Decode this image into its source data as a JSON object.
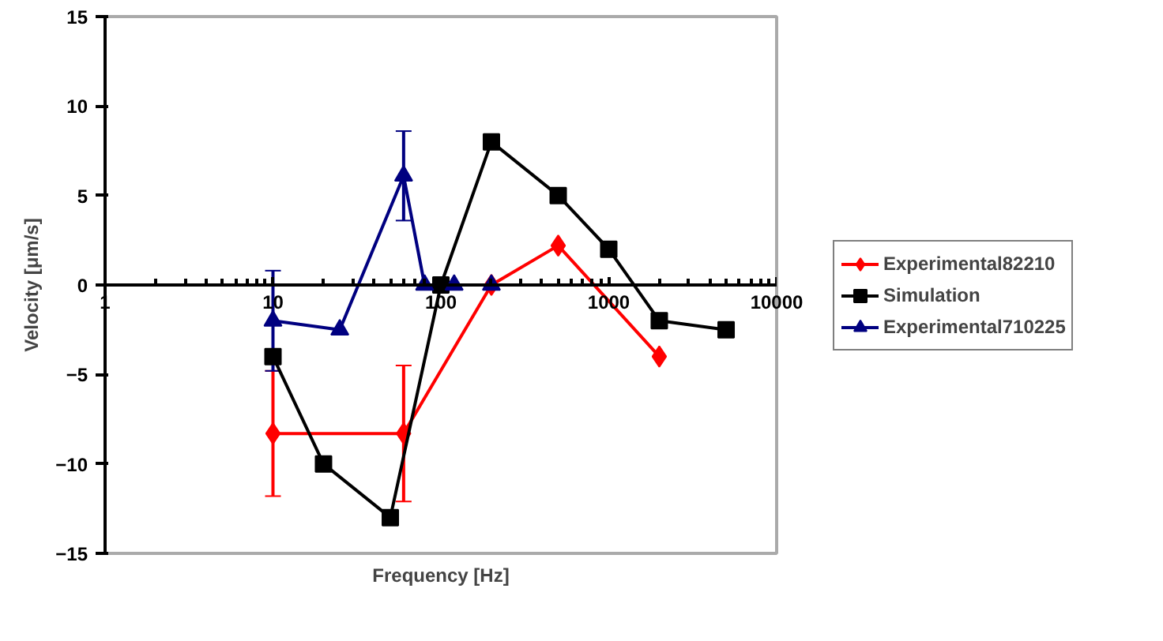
{
  "chart_data": {
    "type": "line",
    "xlabel": "Frequency [Hz]",
    "ylabel": "Velocity [μm/s]",
    "log": "x",
    "xlim": [
      1,
      10000
    ],
    "xticks": [
      1,
      10,
      100,
      1000,
      10000
    ],
    "ylim": [
      -15,
      15
    ],
    "yticks": [
      -15,
      -10,
      -5,
      0,
      5,
      10,
      15
    ],
    "grid": false,
    "legend": "right",
    "series": [
      {
        "name": "Experimental82210",
        "color": "#ff0000",
        "marker": "diamond",
        "x": [
          10,
          60,
          200,
          500,
          2000
        ],
        "values": [
          -8.3,
          -8.3,
          0,
          2.2,
          -4
        ],
        "errors": [
          3.5,
          3.8,
          null,
          null,
          null
        ]
      },
      {
        "name": "Simulation",
        "color": "#000000",
        "marker": "square",
        "x": [
          10,
          20,
          50,
          100,
          200,
          500,
          1000,
          2000,
          5000
        ],
        "values": [
          -4,
          -10,
          -13,
          0,
          8,
          5,
          2,
          -2,
          -2.5
        ]
      },
      {
        "name": "Experimental710225",
        "color": "#000080",
        "marker": "triangle",
        "x": [
          10,
          25,
          60,
          80,
          120,
          200
        ],
        "values": [
          -2,
          -2.5,
          6.1,
          0,
          0,
          0
        ],
        "errors": [
          2.8,
          null,
          2.5,
          null,
          null,
          null
        ]
      }
    ]
  }
}
